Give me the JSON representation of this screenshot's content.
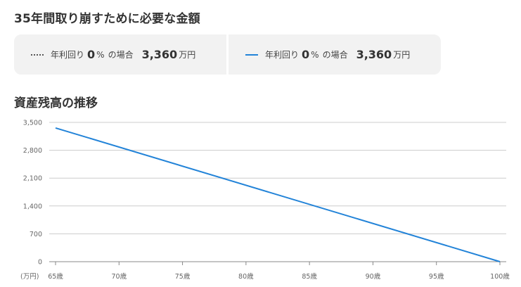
{
  "heading": "35年間取り崩すために必要な金額",
  "legend": [
    {
      "style": "dotted",
      "color": "#555555",
      "label": "年利回り",
      "rate": "0",
      "pct": "%",
      "suffix": "の場合",
      "amount": "3,360",
      "unit": "万円"
    },
    {
      "style": "solid",
      "color": "#2283d8",
      "label": "年利回り",
      "rate": "0",
      "pct": "%",
      "suffix": "の場合",
      "amount": "3,360",
      "unit": "万円"
    }
  ],
  "chart_title": "資産残高の推移",
  "chart_data": {
    "type": "line",
    "ylabel": "(万円)",
    "ylim": [
      0,
      3500
    ],
    "yticks": [
      0,
      700,
      1400,
      2100,
      2800,
      3500
    ],
    "ytick_labels": [
      "0",
      "700",
      "1,400",
      "2,100",
      "2,800",
      "3,500"
    ],
    "xlim": [
      65,
      100
    ],
    "xticks": [
      65,
      70,
      75,
      80,
      85,
      90,
      95,
      100
    ],
    "xtick_labels": [
      "65歳",
      "70歳",
      "75歳",
      "80歳",
      "85歳",
      "90歳",
      "95歳",
      "100歳"
    ],
    "grid": true,
    "series": [
      {
        "color": "#2283d8",
        "style": "solid",
        "x": [
          65,
          100
        ],
        "y": [
          3360,
          0
        ]
      }
    ]
  }
}
